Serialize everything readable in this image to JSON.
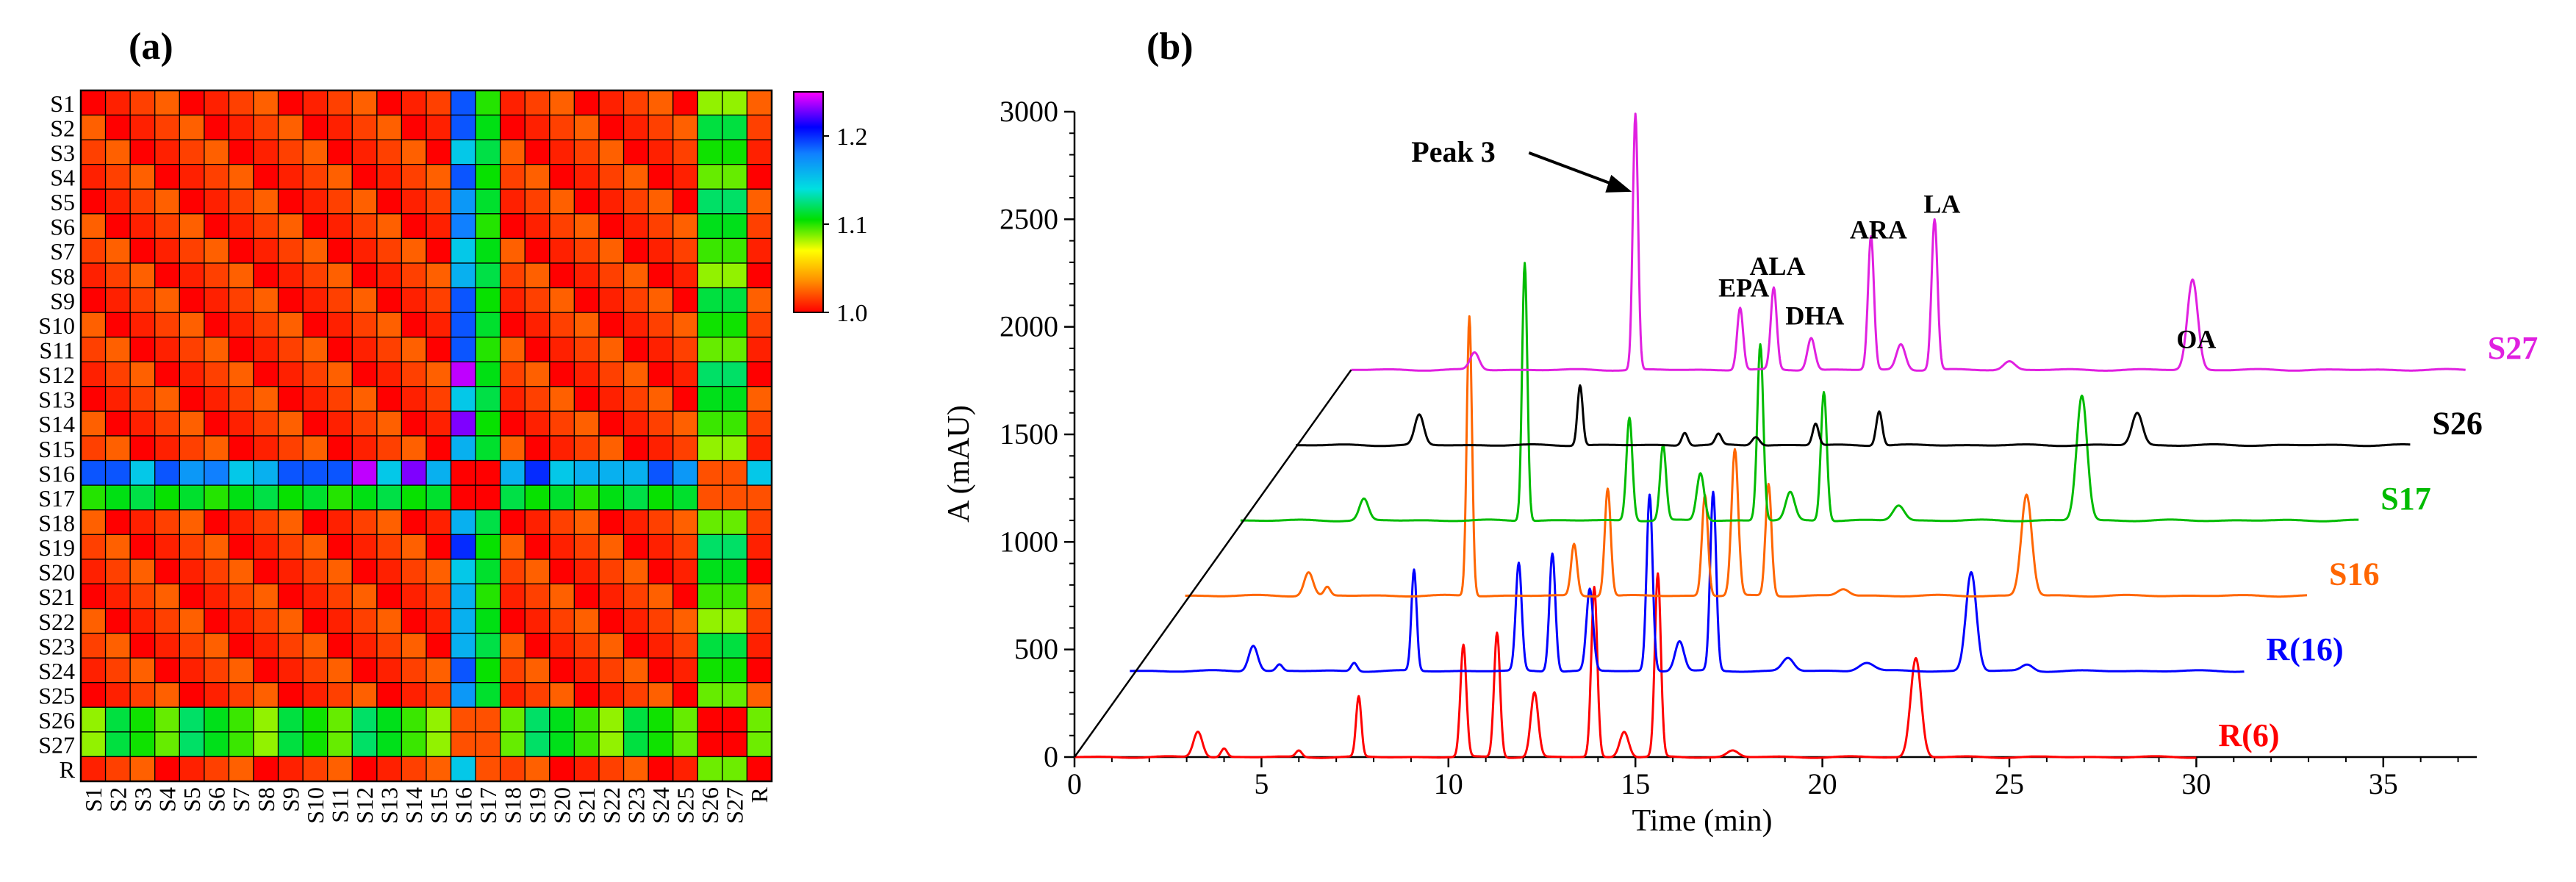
{
  "panels": {
    "a_label": "(a)",
    "b_label": "(b)"
  },
  "chart_data": [
    {
      "type": "heatmap",
      "panel": "(a)",
      "rows": [
        "S1",
        "S2",
        "S3",
        "S4",
        "S5",
        "S6",
        "S7",
        "S8",
        "S9",
        "S10",
        "S11",
        "S12",
        "S13",
        "S14",
        "S15",
        "S16",
        "S17",
        "S18",
        "S19",
        "S20",
        "S21",
        "S22",
        "S23",
        "S24",
        "S25",
        "S26",
        "S27",
        "R"
      ],
      "cols": [
        "S1",
        "S2",
        "S3",
        "S4",
        "S5",
        "S6",
        "S7",
        "S8",
        "S9",
        "S10",
        "S11",
        "S12",
        "S13",
        "S14",
        "S15",
        "S16",
        "S17",
        "S18",
        "S19",
        "S20",
        "S21",
        "S22",
        "S23",
        "S24",
        "S25",
        "S26",
        "S27",
        "R"
      ],
      "group_values": {
        "base": 1.0,
        "s16_column": [
          1.19,
          1.19,
          1.15,
          1.19,
          1.17,
          1.18,
          1.15,
          1.16,
          1.19,
          1.19,
          1.19,
          1.24,
          1.15,
          1.23,
          1.16,
          1.0,
          1.0,
          1.16,
          1.2,
          1.15,
          1.16,
          1.16,
          1.16,
          1.19,
          1.17,
          1.02,
          1.02,
          1.15
        ],
        "s17_column": 1.1,
        "s26_column": 1.1,
        "s27_column": 1.1,
        "r_with_s26_s27": 1.09,
        "s26_s27_block": 1.0
      },
      "colorbar": {
        "min": 1.0,
        "max": 1.25,
        "ticks": [
          "1.0",
          "1.1",
          "1.2"
        ]
      }
    },
    {
      "type": "line",
      "panel": "(b)",
      "xlabel": "Time (min)",
      "ylabel": "A (mAU)",
      "xlim": [
        0,
        37.5
      ],
      "ylim": [
        0,
        3000
      ],
      "x_ticks": [
        "0",
        "5",
        "10",
        "15",
        "20",
        "25",
        "30",
        "35"
      ],
      "y_ticks": [
        "0",
        "500",
        "1000",
        "1500",
        "2000",
        "2500",
        "3000"
      ],
      "stack_offset": {
        "dx_per_trace": 1.48,
        "dy_per_trace": 270
      },
      "series": [
        {
          "name": "R(6)",
          "color": "#ff0000",
          "level": 0,
          "end_time": 30.0,
          "peaks": [
            [
              3.3,
              120,
              0.12
            ],
            [
              4.0,
              40,
              0.08
            ],
            [
              6.0,
              30,
              0.08
            ],
            [
              7.6,
              280,
              0.07
            ],
            [
              10.4,
              520,
              0.08
            ],
            [
              11.3,
              580,
              0.08
            ],
            [
              12.3,
              300,
              0.1
            ],
            [
              13.9,
              790,
              0.08
            ],
            [
              14.7,
              120,
              0.12
            ],
            [
              15.6,
              850,
              0.08
            ],
            [
              17.6,
              30,
              0.15
            ],
            [
              22.5,
              460,
              0.14
            ]
          ]
        },
        {
          "name": "R(16)",
          "color": "#0000ff",
          "level": 400,
          "end_time": 29.8,
          "peaks": [
            [
              3.3,
              120,
              0.12
            ],
            [
              4.0,
              30,
              0.08
            ],
            [
              6.0,
              40,
              0.08
            ],
            [
              7.6,
              470,
              0.07
            ],
            [
              10.4,
              500,
              0.08
            ],
            [
              11.3,
              550,
              0.08
            ],
            [
              12.3,
              380,
              0.09
            ],
            [
              13.9,
              820,
              0.08
            ],
            [
              14.7,
              140,
              0.12
            ],
            [
              15.6,
              830,
              0.08
            ],
            [
              17.6,
              60,
              0.15
            ],
            [
              19.7,
              40,
              0.2
            ],
            [
              22.5,
              460,
              0.14
            ],
            [
              24.0,
              30,
              0.15
            ]
          ]
        },
        {
          "name": "S16",
          "color": "#ff6600",
          "level": 750,
          "end_time": 30.0,
          "peaks": [
            [
              3.3,
              110,
              0.12
            ],
            [
              3.8,
              40,
              0.08
            ],
            [
              7.6,
              1300,
              0.07
            ],
            [
              10.4,
              240,
              0.08
            ],
            [
              11.3,
              500,
              0.08
            ],
            [
              13.9,
              470,
              0.08
            ],
            [
              14.7,
              680,
              0.09
            ],
            [
              15.6,
              520,
              0.08
            ],
            [
              17.6,
              30,
              0.15
            ],
            [
              22.5,
              470,
              0.14
            ]
          ]
        },
        {
          "name": "S17",
          "color": "#00bb00",
          "level": 1100,
          "end_time": 29.9,
          "peaks": [
            [
              3.3,
              100,
              0.12
            ],
            [
              7.6,
              1200,
              0.07
            ],
            [
              10.4,
              480,
              0.08
            ],
            [
              11.3,
              350,
              0.08
            ],
            [
              12.3,
              220,
              0.1
            ],
            [
              13.9,
              820,
              0.08
            ],
            [
              14.7,
              130,
              0.12
            ],
            [
              15.6,
              600,
              0.08
            ],
            [
              17.6,
              70,
              0.15
            ],
            [
              22.5,
              580,
              0.14
            ]
          ]
        },
        {
          "name": "S26",
          "color": "#000000",
          "level": 1450,
          "end_time": 29.8,
          "peaks": [
            [
              3.3,
              140,
              0.12
            ],
            [
              7.6,
              280,
              0.07
            ],
            [
              10.4,
              60,
              0.08
            ],
            [
              11.3,
              50,
              0.08
            ],
            [
              12.3,
              40,
              0.1
            ],
            [
              13.9,
              100,
              0.08
            ],
            [
              15.6,
              160,
              0.08
            ],
            [
              22.5,
              150,
              0.14
            ]
          ]
        },
        {
          "name": "S27",
          "color": "#e020e0",
          "level": 1800,
          "end_time": 29.8,
          "peaks": [
            [
              3.3,
              80,
              0.12
            ],
            [
              7.6,
              1190,
              0.07
            ],
            [
              10.4,
              290,
              0.08
            ],
            [
              11.3,
              380,
              0.08
            ],
            [
              12.3,
              150,
              0.1
            ],
            [
              13.9,
              620,
              0.08
            ],
            [
              14.7,
              120,
              0.12
            ],
            [
              15.6,
              700,
              0.08
            ],
            [
              17.6,
              40,
              0.15
            ],
            [
              22.5,
              420,
              0.14
            ]
          ]
        }
      ],
      "annotations": [
        {
          "text": "Peak 3",
          "t": 15.1,
          "y": 2980
        },
        {
          "text": "EPA",
          "t": 17.9,
          "y": 2100
        },
        {
          "text": "ALA",
          "t": 18.8,
          "y": 2200
        },
        {
          "text": "DHA",
          "t": 19.8,
          "y": 1970
        },
        {
          "text": "ARA",
          "t": 21.5,
          "y": 2370
        },
        {
          "text": "LA",
          "t": 23.2,
          "y": 2490
        },
        {
          "text": "OA",
          "t": 30.0,
          "y": 1860
        }
      ]
    }
  ]
}
